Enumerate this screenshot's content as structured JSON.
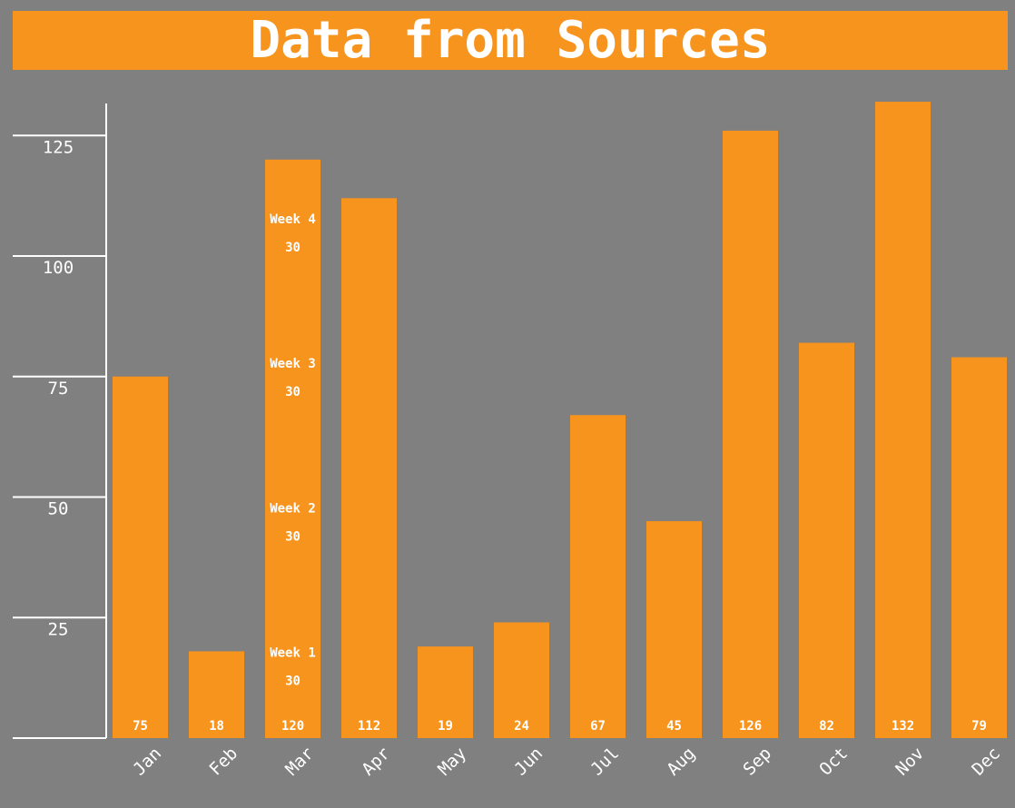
{
  "chart_data": {
    "type": "bar",
    "title": "Data from Sources",
    "xlabel": "",
    "ylabel": "",
    "categories": [
      "Jan",
      "Feb",
      "Mar",
      "Apr",
      "May",
      "Jun",
      "Jul",
      "Aug",
      "Sep",
      "Oct",
      "Nov",
      "Dec"
    ],
    "values": [
      75,
      18,
      120,
      112,
      19,
      24,
      67,
      45,
      126,
      82,
      132,
      79
    ],
    "yticks": [
      25,
      50,
      75,
      100,
      125
    ],
    "ylim": [
      0,
      132
    ],
    "grid": false,
    "legend": "none",
    "segments": {
      "category": "Mar",
      "items": [
        {
          "name": "Week 1",
          "value": 30
        },
        {
          "name": "Week 2",
          "value": 30
        },
        {
          "name": "Week 3",
          "value": 30
        },
        {
          "name": "Week 4",
          "value": 30
        }
      ]
    }
  },
  "colors": {
    "background": "#808080",
    "bar": "#F7941E",
    "text": "#FFFFFF",
    "axis": "#FFFFFF"
  }
}
